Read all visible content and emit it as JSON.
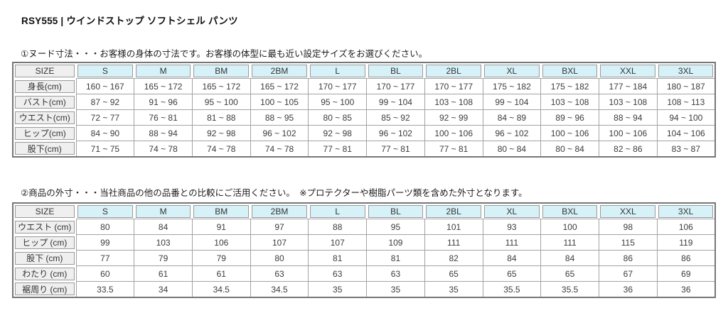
{
  "page": {
    "title": "RSY555 | ウインドストップ ソフトシェル パンツ"
  },
  "colors": {
    "header_bg": "#d6f2f8",
    "label_bg": "#efefef",
    "grid_border": "#a3a3a3",
    "outer_border": "#767676"
  },
  "sections": [
    {
      "note": "①ヌード寸法・・・お客様の身体の寸法です。お客様の体型に最も近い設定サイズをお選びください。",
      "table": {
        "corner": "SIZE",
        "columns": [
          "S",
          "M",
          "BM",
          "2BM",
          "L",
          "BL",
          "2BL",
          "XL",
          "BXL",
          "XXL",
          "3XL"
        ],
        "rows": [
          {
            "label": "身長(cm)",
            "values": [
              "160 ~ 167",
              "165 ~ 172",
              "165 ~ 172",
              "165 ~ 172",
              "170 ~ 177",
              "170 ~ 177",
              "170 ~ 177",
              "175 ~ 182",
              "175 ~ 182",
              "177 ~ 184",
              "180 ~ 187"
            ]
          },
          {
            "label": "バスト(cm)",
            "values": [
              "87 ~ 92",
              "91 ~ 96",
              "95 ~ 100",
              "100 ~ 105",
              "95 ~ 100",
              "99 ~ 104",
              "103 ~ 108",
              "99 ~ 104",
              "103 ~ 108",
              "103 ~ 108",
              "108 ~ 113"
            ]
          },
          {
            "label": "ウエスト(cm)",
            "values": [
              "72 ~ 77",
              "76 ~ 81",
              "81 ~ 88",
              "88 ~ 95",
              "80 ~ 85",
              "85 ~ 92",
              "92 ~ 99",
              "84 ~ 89",
              "89 ~ 96",
              "88 ~ 94",
              "94 ~ 100"
            ]
          },
          {
            "label": "ヒップ(cm)",
            "values": [
              "84 ~ 90",
              "88 ~ 94",
              "92 ~ 98",
              "96 ~ 102",
              "92 ~ 98",
              "96 ~ 102",
              "100 ~ 106",
              "96 ~ 102",
              "100 ~ 106",
              "100 ~ 106",
              "104 ~ 106"
            ]
          },
          {
            "label": "股下(cm)",
            "values": [
              "71 ~ 75",
              "74 ~ 78",
              "74 ~ 78",
              "74 ~ 78",
              "77 ~ 81",
              "77 ~ 81",
              "77 ~ 81",
              "80 ~ 84",
              "80 ~ 84",
              "82 ~ 86",
              "83 ~ 87"
            ]
          }
        ]
      }
    },
    {
      "note": "②商品の外寸・・・当社商品の他の品番との比較にご活用ください。　※プロテクターや樹脂パーツ類を含めた外寸となります。",
      "table": {
        "corner": "SIZE",
        "columns": [
          "S",
          "M",
          "BM",
          "2BM",
          "L",
          "BL",
          "2BL",
          "XL",
          "BXL",
          "XXL",
          "3XL"
        ],
        "rows": [
          {
            "label": "ウエスト (cm)",
            "values": [
              "80",
              "84",
              "91",
              "97",
              "88",
              "95",
              "101",
              "93",
              "100",
              "98",
              "106"
            ]
          },
          {
            "label": "ヒップ (cm)",
            "values": [
              "99",
              "103",
              "106",
              "107",
              "107",
              "109",
              "111",
              "111",
              "111",
              "115",
              "119"
            ]
          },
          {
            "label": "股下 (cm)",
            "values": [
              "77",
              "79",
              "79",
              "80",
              "81",
              "81",
              "82",
              "84",
              "84",
              "86",
              "86"
            ]
          },
          {
            "label": "わたり (cm)",
            "values": [
              "60",
              "61",
              "61",
              "63",
              "63",
              "63",
              "65",
              "65",
              "65",
              "67",
              "69"
            ]
          },
          {
            "label": "裾周り (cm)",
            "values": [
              "33.5",
              "34",
              "34.5",
              "34.5",
              "35",
              "35",
              "35",
              "35.5",
              "35.5",
              "36",
              "36"
            ]
          }
        ]
      }
    }
  ]
}
